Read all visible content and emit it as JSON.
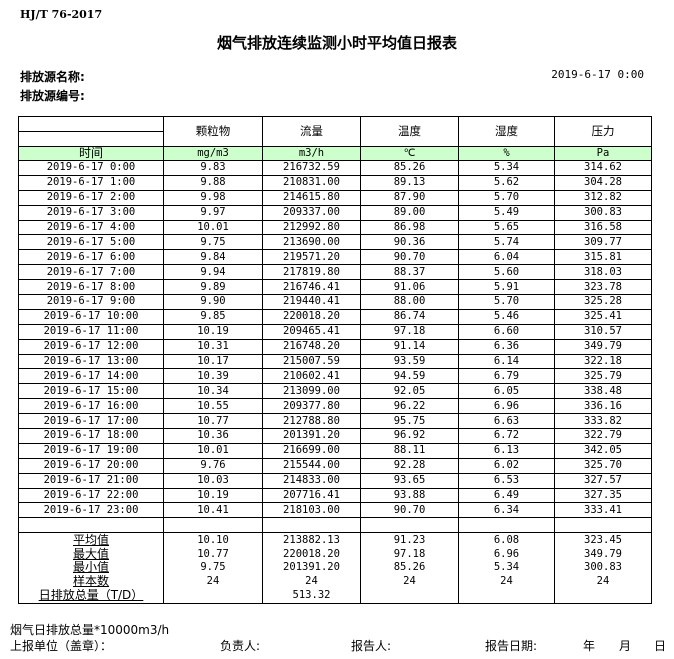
{
  "standard": "HJ/T  76-2017",
  "title": "烟气排放连续监测小时平均值日报表",
  "source_name_label": "排放源名称:",
  "source_code_label": "排放源编号:",
  "report_datetime": "2019-6-17  0:00",
  "table": {
    "headers": [
      "",
      "颗粒物",
      "流量",
      "温度",
      "湿度",
      "压力"
    ],
    "units": [
      "时间",
      "mg/m3",
      "m3/h",
      "℃",
      "%",
      "Pa"
    ],
    "rows": [
      [
        "2019-6-17 0:00",
        "9.83",
        "216732.59",
        "85.26",
        "5.34",
        "314.62"
      ],
      [
        "2019-6-17 1:00",
        "9.88",
        "210831.00",
        "89.13",
        "5.62",
        "304.28"
      ],
      [
        "2019-6-17 2:00",
        "9.98",
        "214615.80",
        "87.90",
        "5.70",
        "312.82"
      ],
      [
        "2019-6-17 3:00",
        "9.97",
        "209337.00",
        "89.00",
        "5.49",
        "300.83"
      ],
      [
        "2019-6-17 4:00",
        "10.01",
        "212992.80",
        "86.98",
        "5.65",
        "316.58"
      ],
      [
        "2019-6-17 5:00",
        "9.75",
        "213690.00",
        "90.36",
        "5.74",
        "309.77"
      ],
      [
        "2019-6-17 6:00",
        "9.84",
        "219571.20",
        "90.70",
        "6.04",
        "315.81"
      ],
      [
        "2019-6-17 7:00",
        "9.94",
        "217819.80",
        "88.37",
        "5.60",
        "318.03"
      ],
      [
        "2019-6-17 8:00",
        "9.89",
        "216746.41",
        "91.06",
        "5.91",
        "323.78"
      ],
      [
        "2019-6-17 9:00",
        "9.90",
        "219440.41",
        "88.00",
        "5.70",
        "325.28"
      ],
      [
        "2019-6-17 10:00",
        "9.85",
        "220018.20",
        "86.74",
        "5.46",
        "325.41"
      ],
      [
        "2019-6-17 11:00",
        "10.19",
        "209465.41",
        "97.18",
        "6.60",
        "310.57"
      ],
      [
        "2019-6-17 12:00",
        "10.31",
        "216748.20",
        "91.14",
        "6.36",
        "349.79"
      ],
      [
        "2019-6-17 13:00",
        "10.17",
        "215007.59",
        "93.59",
        "6.14",
        "322.18"
      ],
      [
        "2019-6-17 14:00",
        "10.39",
        "210602.41",
        "94.59",
        "6.79",
        "325.79"
      ],
      [
        "2019-6-17 15:00",
        "10.34",
        "213099.00",
        "92.05",
        "6.05",
        "338.48"
      ],
      [
        "2019-6-17 16:00",
        "10.55",
        "209377.80",
        "96.22",
        "6.96",
        "336.16"
      ],
      [
        "2019-6-17 17:00",
        "10.77",
        "212788.80",
        "95.75",
        "6.63",
        "333.82"
      ],
      [
        "2019-6-17 18:00",
        "10.36",
        "201391.20",
        "96.92",
        "6.72",
        "322.79"
      ],
      [
        "2019-6-17 19:00",
        "10.01",
        "216699.00",
        "88.11",
        "6.13",
        "342.05"
      ],
      [
        "2019-6-17 20:00",
        "9.76",
        "215544.00",
        "92.28",
        "6.02",
        "325.70"
      ],
      [
        "2019-6-17 21:00",
        "10.03",
        "214833.00",
        "93.65",
        "6.53",
        "327.57"
      ],
      [
        "2019-6-17 22:00",
        "10.19",
        "207716.41",
        "93.88",
        "6.49",
        "327.35"
      ],
      [
        "2019-6-17 23:00",
        "10.41",
        "218103.00",
        "90.70",
        "6.34",
        "333.41"
      ]
    ],
    "summary": [
      [
        "平均值",
        "10.10",
        "213882.13",
        "91.23",
        "6.08",
        "323.45"
      ],
      [
        "最大值",
        "10.77",
        "220018.20",
        "97.18",
        "6.96",
        "349.79"
      ],
      [
        "最小值",
        "9.75",
        "201391.20",
        "85.26",
        "5.34",
        "300.83"
      ],
      [
        "样本数",
        "24",
        "24",
        "24",
        "24",
        "24"
      ],
      [
        "日排放总量（T/D）",
        "",
        "513.32",
        "",
        "",
        ""
      ]
    ]
  },
  "footer": {
    "note": "烟气日排放总量*10000m3/h",
    "unit_label": "上报单位（盖章）：",
    "responsible_label": "负责人:",
    "reporter_label": "报告人:",
    "report_date_label": "报告日期:",
    "year": "年",
    "month": "月",
    "day": "日"
  }
}
